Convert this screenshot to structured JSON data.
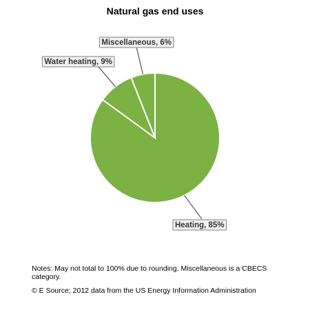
{
  "chart_data": {
    "type": "pie",
    "title": "Natural gas end uses",
    "categories": [
      "Heating",
      "Water heating",
      "Miscellaneous"
    ],
    "values": [
      85,
      9,
      6
    ],
    "labels": [
      "Heating, 85%",
      "Water heating, 9%",
      "Miscellaneous, 6%"
    ],
    "colors": [
      "#7cb143",
      "#7cb143",
      "#7cb143"
    ]
  },
  "notes": "Notes: May not total to 100% due to rounding. Miscellaneous is a CBECS category.",
  "source": "© E Source; 2012 data from the US Energy Information Administration"
}
